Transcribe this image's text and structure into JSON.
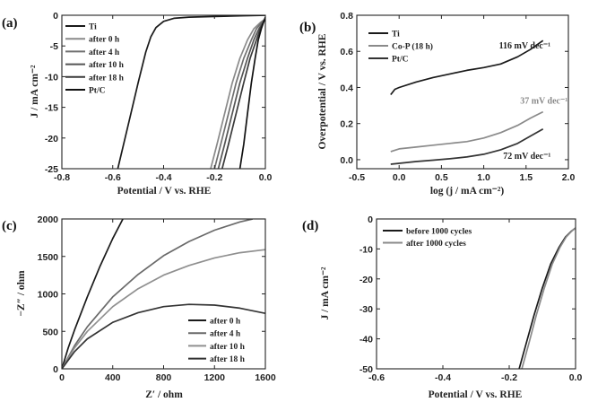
{
  "chart_data": [
    {
      "panel_label": "(a)",
      "type": "line",
      "xlabel": "Potential / V vs. RHE",
      "ylabel": "J / mA cm⁻²",
      "xlim": [
        -0.8,
        0.0
      ],
      "ylim": [
        -25,
        0
      ],
      "xticks": [
        "-0.8",
        "-0.6",
        "-0.4",
        "-0.2",
        "0.0"
      ],
      "yticks": [
        "0",
        "-5",
        "-10",
        "-15",
        "-20",
        "-25"
      ],
      "legend_position": "top-left",
      "series": [
        {
          "name": "Ti",
          "color": "#1a1a1a",
          "x": [
            -0.58,
            -0.54,
            -0.5,
            -0.47,
            -0.45,
            -0.43,
            -0.4,
            -0.36,
            -0.3,
            -0.2,
            -0.1,
            0.0
          ],
          "y": [
            -25,
            -18,
            -11,
            -6,
            -3.5,
            -2,
            -1,
            -0.5,
            -0.3,
            -0.2,
            -0.1,
            0
          ]
        },
        {
          "name": "after 0 h",
          "color": "#8a8a8a",
          "x": [
            -0.215,
            -0.19,
            -0.16,
            -0.13,
            -0.1,
            -0.07,
            -0.045,
            -0.02,
            0.0
          ],
          "y": [
            -25,
            -21,
            -16,
            -11,
            -7,
            -4,
            -2.2,
            -1.2,
            -0.6
          ]
        },
        {
          "name": "after 4 h",
          "color": "#707070",
          "x": [
            -0.2,
            -0.175,
            -0.145,
            -0.115,
            -0.085,
            -0.055,
            -0.035,
            -0.015,
            0.0
          ],
          "y": [
            -25,
            -21,
            -16,
            -11,
            -7,
            -4,
            -2.2,
            -1.2,
            -0.6
          ]
        },
        {
          "name": "after 10 h",
          "color": "#555555",
          "x": [
            -0.185,
            -0.16,
            -0.13,
            -0.1,
            -0.07,
            -0.045,
            -0.025,
            -0.01,
            0.0
          ],
          "y": [
            -25,
            -21,
            -16,
            -11,
            -7,
            -4,
            -2.2,
            -1.2,
            -0.6
          ]
        },
        {
          "name": "after 18 h",
          "color": "#3a3a3a",
          "x": [
            -0.17,
            -0.145,
            -0.115,
            -0.085,
            -0.06,
            -0.035,
            -0.02,
            -0.008,
            0.0
          ],
          "y": [
            -25,
            -21,
            -16,
            -11,
            -7,
            -4,
            -2.2,
            -1.2,
            -0.6
          ]
        },
        {
          "name": "Pt/C",
          "color": "#111111",
          "x": [
            -0.1,
            -0.085,
            -0.07,
            -0.055,
            -0.04,
            -0.028,
            -0.016,
            -0.006,
            0.0
          ],
          "y": [
            -25,
            -21,
            -16,
            -11,
            -7,
            -4,
            -2.2,
            -1.0,
            -0.3
          ]
        }
      ]
    },
    {
      "panel_label": "(b)",
      "type": "line",
      "xlabel": "log (j / mA cm⁻²)",
      "ylabel": "Overpotential / V vs. RHE",
      "xlim": [
        -0.5,
        2.0
      ],
      "ylim": [
        -0.05,
        0.8
      ],
      "xticks": [
        "-0.5",
        "0.0",
        "0.5",
        "1.0",
        "1.5",
        "2.0"
      ],
      "yticks": [
        "0.0",
        "0.2",
        "0.4",
        "0.6",
        "0.8"
      ],
      "legend_position": "top-left",
      "series": [
        {
          "name": "Ti",
          "color": "#1a1a1a",
          "x": [
            -0.1,
            -0.05,
            0.0,
            0.2,
            0.4,
            0.6,
            0.8,
            1.0,
            1.2,
            1.4,
            1.55,
            1.7
          ],
          "y": [
            0.36,
            0.39,
            0.4,
            0.43,
            0.455,
            0.475,
            0.495,
            0.51,
            0.53,
            0.57,
            0.61,
            0.66
          ]
        },
        {
          "name": "Co-P (18 h)",
          "color": "#8a8a8a",
          "x": [
            -0.1,
            0.0,
            0.2,
            0.4,
            0.6,
            0.8,
            1.0,
            1.2,
            1.4,
            1.55,
            1.7
          ],
          "y": [
            0.045,
            0.06,
            0.07,
            0.08,
            0.09,
            0.1,
            0.12,
            0.15,
            0.19,
            0.23,
            0.265
          ]
        },
        {
          "name": "Pt/C",
          "color": "#333333",
          "x": [
            -0.1,
            0.0,
            0.2,
            0.4,
            0.6,
            0.8,
            1.0,
            1.2,
            1.4,
            1.55,
            1.7
          ],
          "y": [
            -0.025,
            -0.02,
            -0.01,
            -0.003,
            0.005,
            0.015,
            0.03,
            0.055,
            0.09,
            0.13,
            0.17
          ]
        }
      ],
      "annotations": [
        {
          "text": "116 mV dec⁻¹",
          "series": "Ti",
          "color": "#222222",
          "x": 1.18,
          "y": 0.615
        },
        {
          "text": "37 mV dec⁻¹",
          "series": "Co-P (18 h)",
          "color": "#8a8a8a",
          "x": 1.43,
          "y": 0.31
        },
        {
          "text": "72 mV dec⁻¹",
          "series": "Pt/C",
          "color": "#222222",
          "x": 1.23,
          "y": 0.005
        }
      ]
    },
    {
      "panel_label": "(c)",
      "type": "line",
      "xlabel": "Z′ / ohm",
      "ylabel": "−Z″ / ohm",
      "xlim": [
        0,
        1600
      ],
      "ylim": [
        0,
        2000
      ],
      "xticks": [
        "0",
        "400",
        "800",
        "1200",
        "1600"
      ],
      "yticks": [
        "0",
        "500",
        "1000",
        "1500",
        "2000"
      ],
      "legend_position": "bottom-right",
      "series": [
        {
          "name": "after 0 h",
          "color": "#1a1a1a",
          "x": [
            0,
            50,
            100,
            200,
            300,
            400,
            480
          ],
          "y": [
            0,
            280,
            520,
            960,
            1370,
            1740,
            2000
          ]
        },
        {
          "name": "after 4 h",
          "color": "#6a6a6a",
          "x": [
            0,
            100,
            200,
            400,
            600,
            800,
            1000,
            1200,
            1400,
            1500
          ],
          "y": [
            0,
            310,
            560,
            960,
            1260,
            1510,
            1700,
            1850,
            1960,
            2000
          ]
        },
        {
          "name": "after 10 h",
          "color": "#8f8f8f",
          "x": [
            0,
            100,
            200,
            400,
            600,
            800,
            1000,
            1200,
            1400,
            1600
          ],
          "y": [
            0,
            280,
            500,
            830,
            1070,
            1250,
            1380,
            1480,
            1550,
            1590
          ]
        },
        {
          "name": "after 18 h",
          "color": "#333333",
          "x": [
            0,
            100,
            200,
            400,
            600,
            800,
            1000,
            1200,
            1400,
            1600
          ],
          "y": [
            0,
            230,
            400,
            620,
            750,
            830,
            860,
            850,
            810,
            740
          ]
        }
      ]
    },
    {
      "panel_label": "(d)",
      "type": "line",
      "xlabel": "Potential / V vs. RHE",
      "ylabel": "J / mA cm⁻²",
      "xlim": [
        -0.6,
        0.0
      ],
      "ylim": [
        -50,
        0
      ],
      "xticks": [
        "-0.6",
        "-0.4",
        "-0.2",
        "0.0"
      ],
      "yticks": [
        "0",
        "-10",
        "-20",
        "-30",
        "-40",
        "-50"
      ],
      "legend_position": "top-left",
      "series": [
        {
          "name": "before 1000 cycles",
          "color": "#1a1a1a",
          "x": [
            -0.17,
            -0.15,
            -0.125,
            -0.1,
            -0.075,
            -0.05,
            -0.03,
            -0.012,
            0.0
          ],
          "y": [
            -50,
            -42,
            -32,
            -23,
            -15,
            -9.5,
            -6,
            -4,
            -3
          ]
        },
        {
          "name": "after  1000 cycles",
          "color": "#8a8a8a",
          "x": [
            -0.162,
            -0.142,
            -0.118,
            -0.094,
            -0.07,
            -0.047,
            -0.028,
            -0.011,
            0.0
          ],
          "y": [
            -50,
            -42,
            -32,
            -23,
            -15,
            -9.5,
            -6,
            -4,
            -3
          ]
        }
      ]
    }
  ]
}
